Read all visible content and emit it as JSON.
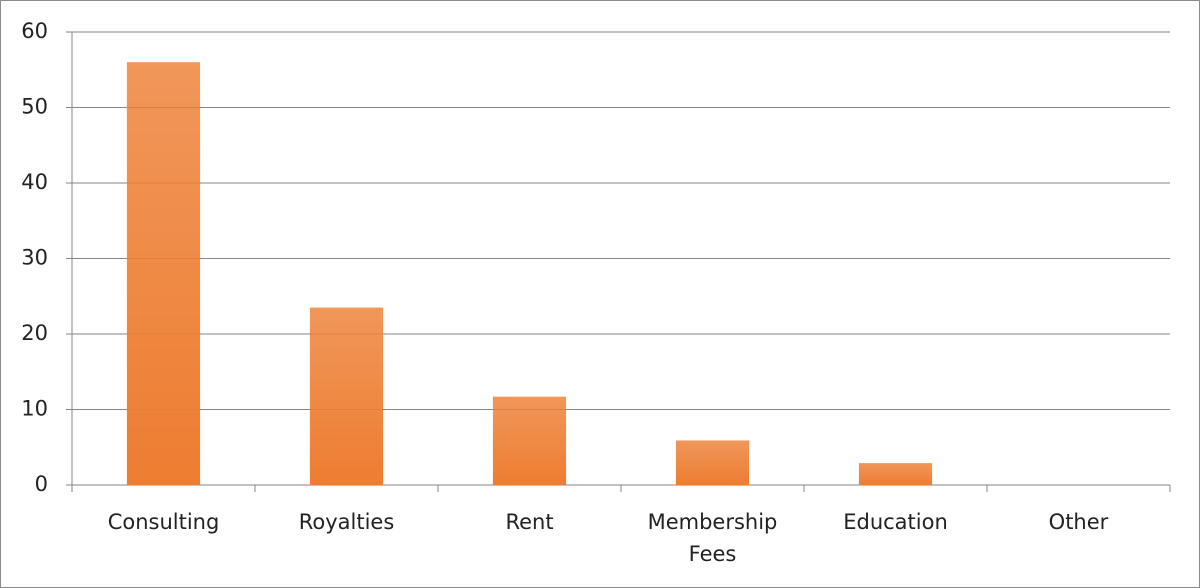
{
  "chart_data": {
    "type": "bar",
    "categories": [
      "Consulting",
      "Royalties",
      "Rent",
      "Membership Fees",
      "Education",
      "Other"
    ],
    "values": [
      56,
      23.5,
      11.7,
      5.9,
      2.9,
      0
    ],
    "color": "#ed7d31",
    "ylim": [
      0,
      60
    ],
    "yticks": [
      0,
      10,
      20,
      30,
      40,
      50,
      60
    ],
    "grid": true
  }
}
